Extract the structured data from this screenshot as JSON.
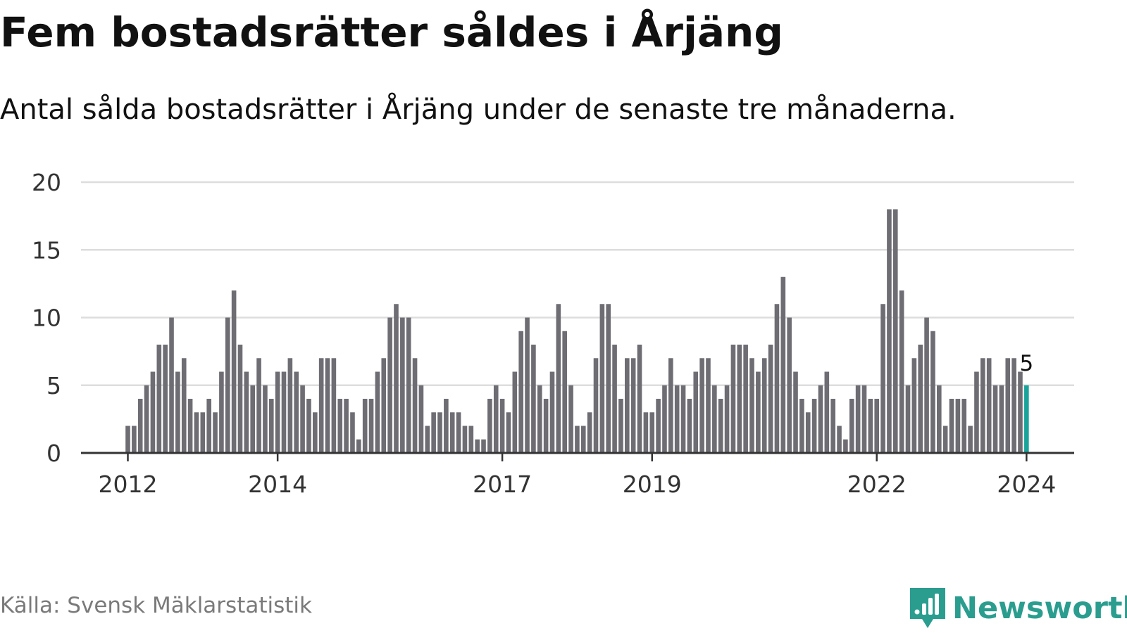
{
  "header": {
    "title": "Fem bostadsrätter såldes i Årjäng",
    "subtitle": "Antal sålda bostadsrätter i Årjäng under de senaste tre månaderna."
  },
  "footer": {
    "source": "Källa: Svensk Mäklarstatistik",
    "brand": "Newsworthy",
    "brand_icon": "newsworthy-logo-icon"
  },
  "colors": {
    "bar": "#6e6d73",
    "highlight": "#1aa39a",
    "grid": "#dddddd",
    "axis": "#333333",
    "brand": "#2a9d8f"
  },
  "chart_data": {
    "type": "bar",
    "title": "Fem bostadsrätter såldes i Årjäng",
    "subtitle": "Antal sålda bostadsrätter i Årjäng under de senaste tre månaderna.",
    "xlabel": "",
    "ylabel": "",
    "ylim": [
      0,
      20
    ],
    "yticks": [
      0,
      5,
      10,
      15,
      20
    ],
    "xticks": [
      "2012",
      "2014",
      "2017",
      "2019",
      "2022",
      "2024"
    ],
    "grid": "horizontal",
    "start_month": "2012-01",
    "end_month": "2024-01",
    "values": [
      2,
      2,
      4,
      5,
      6,
      8,
      8,
      10,
      6,
      7,
      4,
      3,
      3,
      4,
      3,
      6,
      10,
      12,
      8,
      6,
      5,
      7,
      5,
      4,
      6,
      6,
      7,
      6,
      5,
      4,
      3,
      7,
      7,
      7,
      4,
      4,
      3,
      1,
      4,
      4,
      6,
      7,
      10,
      11,
      10,
      10,
      7,
      5,
      2,
      3,
      3,
      4,
      3,
      3,
      2,
      2,
      1,
      1,
      4,
      5,
      4,
      3,
      6,
      9,
      10,
      8,
      5,
      4,
      6,
      11,
      9,
      5,
      2,
      2,
      3,
      7,
      11,
      11,
      8,
      4,
      7,
      7,
      8,
      3,
      3,
      4,
      5,
      7,
      5,
      5,
      4,
      6,
      7,
      7,
      5,
      4,
      5,
      8,
      8,
      8,
      7,
      6,
      7,
      8,
      11,
      13,
      10,
      6,
      4,
      3,
      4,
      5,
      6,
      4,
      2,
      1,
      4,
      5,
      5,
      4,
      4,
      11,
      18,
      18,
      12,
      5,
      7,
      8,
      10,
      9,
      5,
      2,
      4,
      4,
      4,
      2,
      6,
      7,
      7,
      5,
      5,
      7,
      7,
      6,
      5
    ],
    "highlight_last": true,
    "last_value_label": "5"
  }
}
